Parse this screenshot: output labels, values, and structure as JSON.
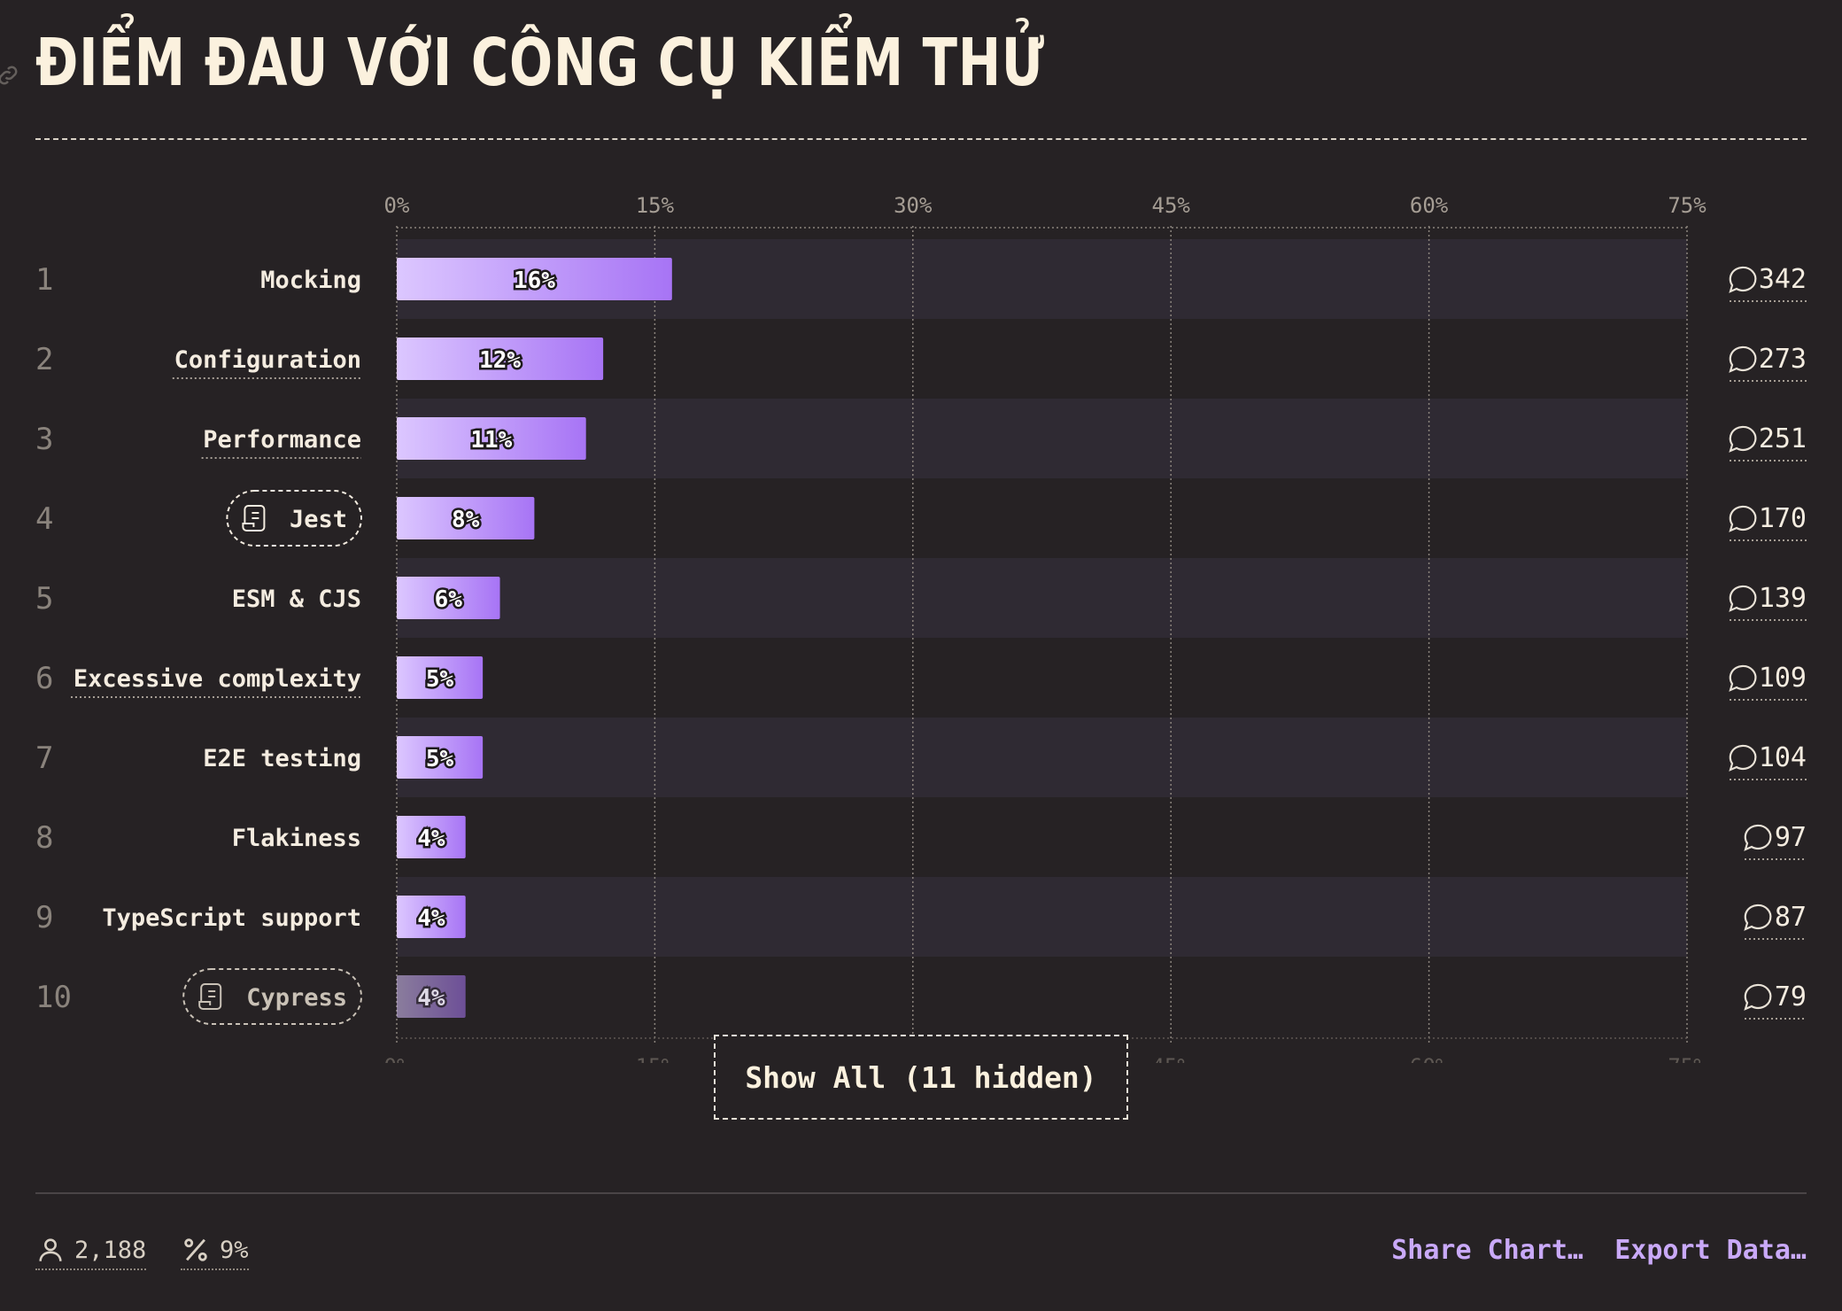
{
  "header": {
    "title": "ĐIỂM ĐAU VỚI CÔNG CỤ KIỂM THỬ"
  },
  "chart_data": {
    "type": "bar",
    "orientation": "horizontal",
    "title": "ĐIỂM ĐAU VỚI CÔNG CỤ KIỂM THỬ",
    "xlim": [
      0,
      75
    ],
    "x_ticks": [
      "0%",
      "15%",
      "30%",
      "45%",
      "60%",
      "75%"
    ],
    "grid": true,
    "rows": [
      {
        "rank": "1",
        "label": "Mocking",
        "value": 16,
        "value_label": "16%",
        "comments": "342",
        "underlined": false,
        "tagged": false,
        "faded": false
      },
      {
        "rank": "2",
        "label": "Configuration",
        "value": 12,
        "value_label": "12%",
        "comments": "273",
        "underlined": true,
        "tagged": false,
        "faded": false
      },
      {
        "rank": "3",
        "label": "Performance",
        "value": 11,
        "value_label": "11%",
        "comments": "251",
        "underlined": true,
        "tagged": false,
        "faded": false
      },
      {
        "rank": "4",
        "label": "Jest",
        "value": 8,
        "value_label": "8%",
        "comments": "170",
        "underlined": false,
        "tagged": true,
        "faded": false
      },
      {
        "rank": "5",
        "label": "ESM & CJS",
        "value": 6,
        "value_label": "6%",
        "comments": "139",
        "underlined": false,
        "tagged": false,
        "faded": false
      },
      {
        "rank": "6",
        "label": "Excessive complexity",
        "value": 5,
        "value_label": "5%",
        "comments": "109",
        "underlined": true,
        "tagged": false,
        "faded": false
      },
      {
        "rank": "7",
        "label": "E2E testing",
        "value": 5,
        "value_label": "5%",
        "comments": "104",
        "underlined": false,
        "tagged": false,
        "faded": false
      },
      {
        "rank": "8",
        "label": "Flakiness",
        "value": 4,
        "value_label": "4%",
        "comments": "97",
        "underlined": false,
        "tagged": false,
        "faded": false
      },
      {
        "rank": "9",
        "label": "TypeScript support",
        "value": 4,
        "value_label": "4%",
        "comments": "87",
        "underlined": false,
        "tagged": false,
        "faded": false
      },
      {
        "rank": "10",
        "label": "Cypress",
        "value": 4,
        "value_label": "4%",
        "comments": "79",
        "underlined": false,
        "tagged": true,
        "faded": true
      }
    ]
  },
  "show_all_label": "Show All (11 hidden)",
  "footer": {
    "respondents": "2,188",
    "percent": "9%",
    "share_label": "Share Chart…",
    "export_label": "Export Data…"
  },
  "colors": {
    "bar_start": "#dcc7ff",
    "bar_end": "#a774f5",
    "stripe": "#2f2a33",
    "background": "#262224",
    "accent": "#c9a9f8"
  },
  "icons": {
    "anchor": "link-icon",
    "comment": "speech-bubble-icon",
    "tag": "scroll-icon",
    "users": "person-icon",
    "percent": "percent-icon"
  }
}
